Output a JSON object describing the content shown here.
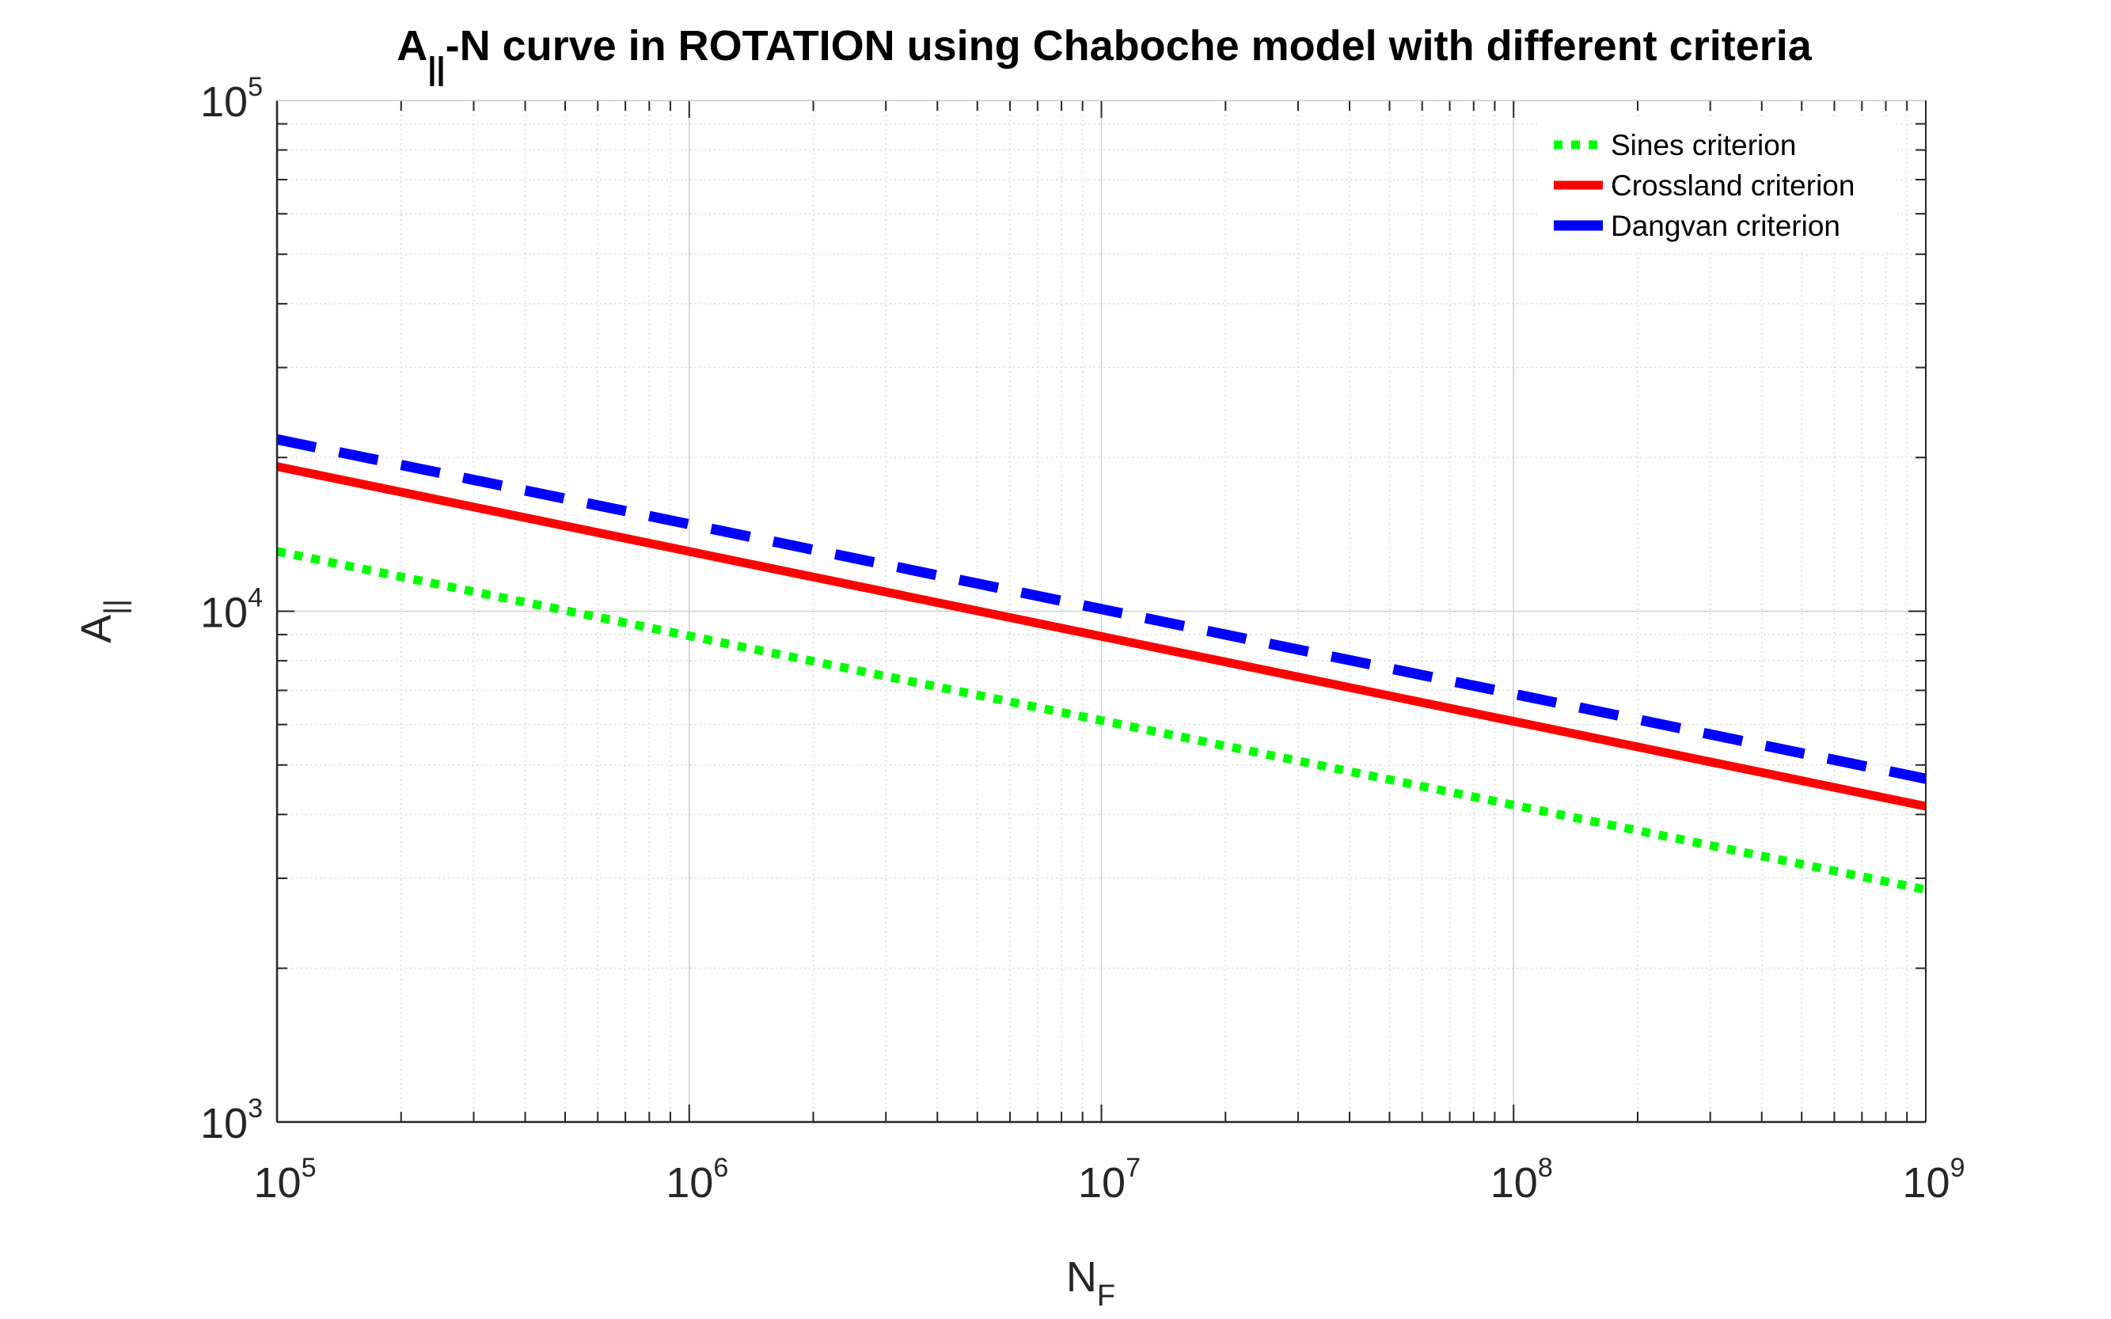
{
  "chart_data": {
    "type": "line",
    "title": {
      "main": "A",
      "sub": "||",
      "rest": "-N curve in ROTATION using Chaboche model with different criteria"
    },
    "xlabel": {
      "main": "N",
      "sub": "F"
    },
    "ylabel": {
      "main": "A",
      "sub": "||"
    },
    "xscale": "log",
    "yscale": "log",
    "xlim": [
      100000,
      1000000000
    ],
    "ylim": [
      1000,
      100000
    ],
    "x_ticks": [
      {
        "base": "10",
        "exp": "5",
        "value": 100000
      },
      {
        "base": "10",
        "exp": "6",
        "value": 1000000
      },
      {
        "base": "10",
        "exp": "7",
        "value": 10000000
      },
      {
        "base": "10",
        "exp": "8",
        "value": 100000000
      },
      {
        "base": "10",
        "exp": "9",
        "value": 1000000000
      }
    ],
    "y_ticks": [
      {
        "base": "10",
        "exp": "3",
        "value": 1000
      },
      {
        "base": "10",
        "exp": "4",
        "value": 10000
      },
      {
        "base": "10",
        "exp": "5",
        "value": 100000
      }
    ],
    "grid": true,
    "minor_grid": true,
    "legend_position": "top-right",
    "series": [
      {
        "name": "Sines criterion",
        "color": "#00ff00",
        "style": "dotted",
        "x": [
          100000,
          1000000000
        ],
        "y": [
          13100,
          2850
        ]
      },
      {
        "name": "Crossland criterion",
        "color": "#ff0000",
        "style": "solid",
        "x": [
          100000,
          1000000000
        ],
        "y": [
          19200,
          4150
        ]
      },
      {
        "name": "Dangvan criterion",
        "color": "#0000ff",
        "style": "dashed",
        "x": [
          100000,
          1000000000
        ],
        "y": [
          21700,
          4700
        ]
      }
    ]
  }
}
